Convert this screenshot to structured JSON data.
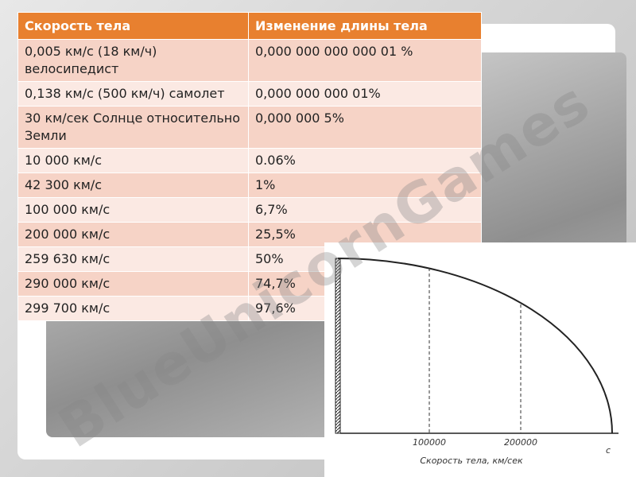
{
  "table": {
    "header": [
      "Скорость тела",
      "Изменение длины тела"
    ],
    "rows": [
      [
        "0,005 км/с (18 км/ч) велосипедист",
        "0,000 000 000 000 01 %"
      ],
      [
        "0,138 км/с (500 км/ч) самолет",
        "0,000 000 000 01%"
      ],
      [
        "30 км/сек Солнце относительно Земли",
        "0,000 000 5%"
      ],
      [
        "10 000 км/с",
        "0.06%"
      ],
      [
        "42 300 км/с",
        "1%"
      ],
      [
        "100 000 км/с",
        "6,7%"
      ],
      [
        "200 000 км/с",
        "25,5%"
      ],
      [
        "259 630 км/с",
        "50%"
      ],
      [
        "290 000 км/с",
        "74,7%"
      ],
      [
        "299 700 км/с",
        "97,6%"
      ]
    ]
  },
  "figure": {
    "tick_labels": [
      "100000",
      "200000",
      "c"
    ],
    "axis_label": "Скорость тела, км/сек"
  },
  "watermark": "BlueUnicornGames"
}
